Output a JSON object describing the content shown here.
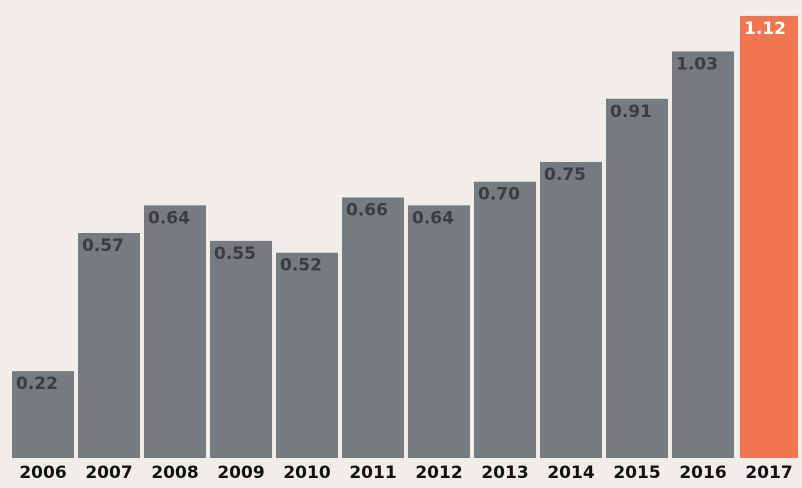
{
  "chart_data": {
    "type": "bar",
    "categories": [
      "2006",
      "2007",
      "2008",
      "2009",
      "2010",
      "2011",
      "2012",
      "2013",
      "2014",
      "2015",
      "2016",
      "2017"
    ],
    "values": [
      0.22,
      0.57,
      0.64,
      0.55,
      0.52,
      0.66,
      0.64,
      0.7,
      0.75,
      0.91,
      1.03,
      1.12
    ],
    "data_labels": [
      "0.22",
      "0.57",
      "0.64",
      "0.55",
      "0.52",
      "0.66",
      "0.64",
      "0.70",
      "0.75",
      "0.91",
      "1.03",
      "1.12"
    ],
    "highlight_index": 11,
    "title": "",
    "xlabel": "",
    "ylabel": "",
    "ylim": [
      0,
      1.14
    ],
    "grid": false,
    "legend": "none"
  },
  "colors": {
    "background": "#f1eeea",
    "bar": "#767b7f",
    "highlight_bar": "#ef7650",
    "label_on_gray": "#3a3e42",
    "label_on_highlight": "#ffffff",
    "tick_text": "#111111"
  }
}
